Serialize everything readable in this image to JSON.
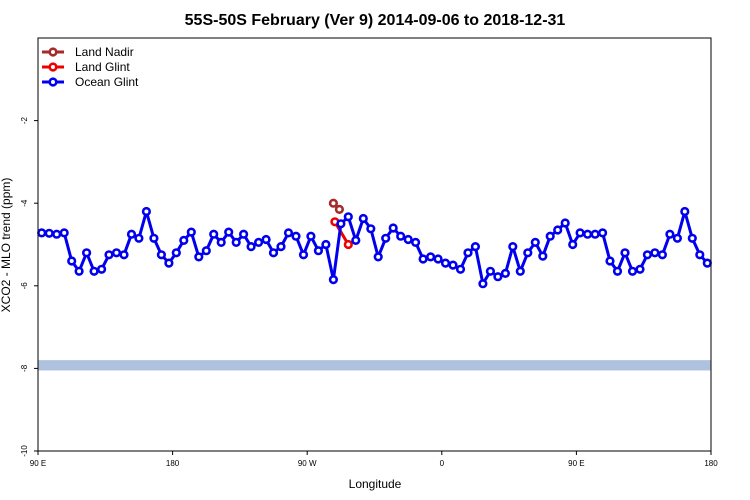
{
  "chart_data": {
    "type": "line",
    "title": "55S-50S February (Ver 9)   2014-09-06 to 2018-12-31",
    "xlabel": "Longitude",
    "ylabel": "XCO2 - MLO trend (ppm)",
    "x_ticks": [
      {
        "value": 90,
        "label": "90 E"
      },
      {
        "value": 180,
        "label": "180"
      },
      {
        "value": 270,
        "label": "90 W"
      },
      {
        "value": 360,
        "label": "0"
      },
      {
        "value": 450,
        "label": "90 E"
      },
      {
        "value": 540,
        "label": "180"
      }
    ],
    "y_ticks": [
      -10,
      -8,
      -6,
      -4,
      -2
    ],
    "xlim": [
      90,
      540
    ],
    "ylim": [
      -10,
      0
    ],
    "grid": false,
    "legend_position": "top-left",
    "land_band": {
      "y_min": -8.05,
      "y_max": -7.8,
      "color": "#aec2e0"
    },
    "series": [
      {
        "name": "Land Nadir",
        "color": "#a52a2a",
        "x": [
          287.5,
          291.5
        ],
        "y": [
          -4.0,
          -4.15
        ]
      },
      {
        "name": "Land Glint",
        "color": "#ee0000",
        "x": [
          288.5,
          297.5
        ],
        "y": [
          -4.45,
          -5.0
        ]
      },
      {
        "name": "Ocean Glint",
        "color": "#0000ee",
        "x": [
          92.5,
          97.5,
          102.5,
          107.5,
          112.5,
          117.5,
          122.5,
          127.5,
          132.5,
          137.5,
          142.5,
          147.5,
          152.5,
          157.5,
          162.5,
          167.5,
          172.5,
          177.5,
          182.5,
          187.5,
          192.5,
          197.5,
          202.5,
          207.5,
          212.5,
          217.5,
          222.5,
          227.5,
          232.5,
          237.5,
          242.5,
          247.5,
          252.5,
          257.5,
          262.5,
          267.5,
          272.5,
          277.5,
          282.5,
          287.5,
          292.5,
          297.5,
          302.5,
          307.5,
          312.5,
          317.5,
          322.5,
          327.5,
          332.5,
          337.5,
          342.5,
          347.5,
          352.5,
          357.5,
          362.5,
          367.5,
          372.5,
          377.5,
          382.5,
          387.5,
          392.5,
          397.5,
          402.5,
          407.5,
          412.5,
          417.5,
          422.5,
          427.5,
          432.5,
          437.5,
          442.5,
          447.5,
          452.5,
          457.5,
          462.5,
          467.5,
          472.5,
          477.5,
          482.5,
          487.5,
          492.5,
          497.5,
          502.5,
          507.5,
          512.5,
          517.5,
          522.5,
          527.5,
          532.5,
          537.5
        ],
        "y": [
          -4.72,
          -4.73,
          -4.75,
          -4.72,
          -5.4,
          -5.65,
          -5.2,
          -5.65,
          -5.6,
          -5.25,
          -5.2,
          -5.25,
          -4.75,
          -4.85,
          -4.2,
          -4.85,
          -5.25,
          -5.45,
          -5.2,
          -4.9,
          -4.7,
          -5.3,
          -5.15,
          -4.75,
          -4.95,
          -4.7,
          -4.95,
          -4.75,
          -5.05,
          -4.95,
          -4.88,
          -5.2,
          -5.05,
          -4.72,
          -4.8,
          -5.25,
          -4.8,
          -5.15,
          -5.0,
          -5.85,
          -4.5,
          -4.33,
          -4.9,
          -4.37,
          -4.62,
          -5.3,
          -4.85,
          -4.6,
          -4.8,
          -4.88,
          -4.95,
          -5.35,
          -5.3,
          -5.35,
          -5.45,
          -5.5,
          -5.6,
          -5.2,
          -5.05,
          -5.95,
          -5.65,
          -5.78,
          -5.7,
          -5.05,
          -5.65,
          -5.2,
          -4.95,
          -5.28,
          -4.8,
          -4.65,
          -4.48,
          -5.0,
          -4.72,
          -4.75,
          -4.75,
          -4.72,
          -5.4,
          -5.65,
          -5.2,
          -5.65,
          -5.6,
          -5.25,
          -5.2,
          -5.25,
          -4.75,
          -4.85,
          -4.2,
          -4.85,
          -5.25,
          -5.45
        ]
      }
    ]
  }
}
